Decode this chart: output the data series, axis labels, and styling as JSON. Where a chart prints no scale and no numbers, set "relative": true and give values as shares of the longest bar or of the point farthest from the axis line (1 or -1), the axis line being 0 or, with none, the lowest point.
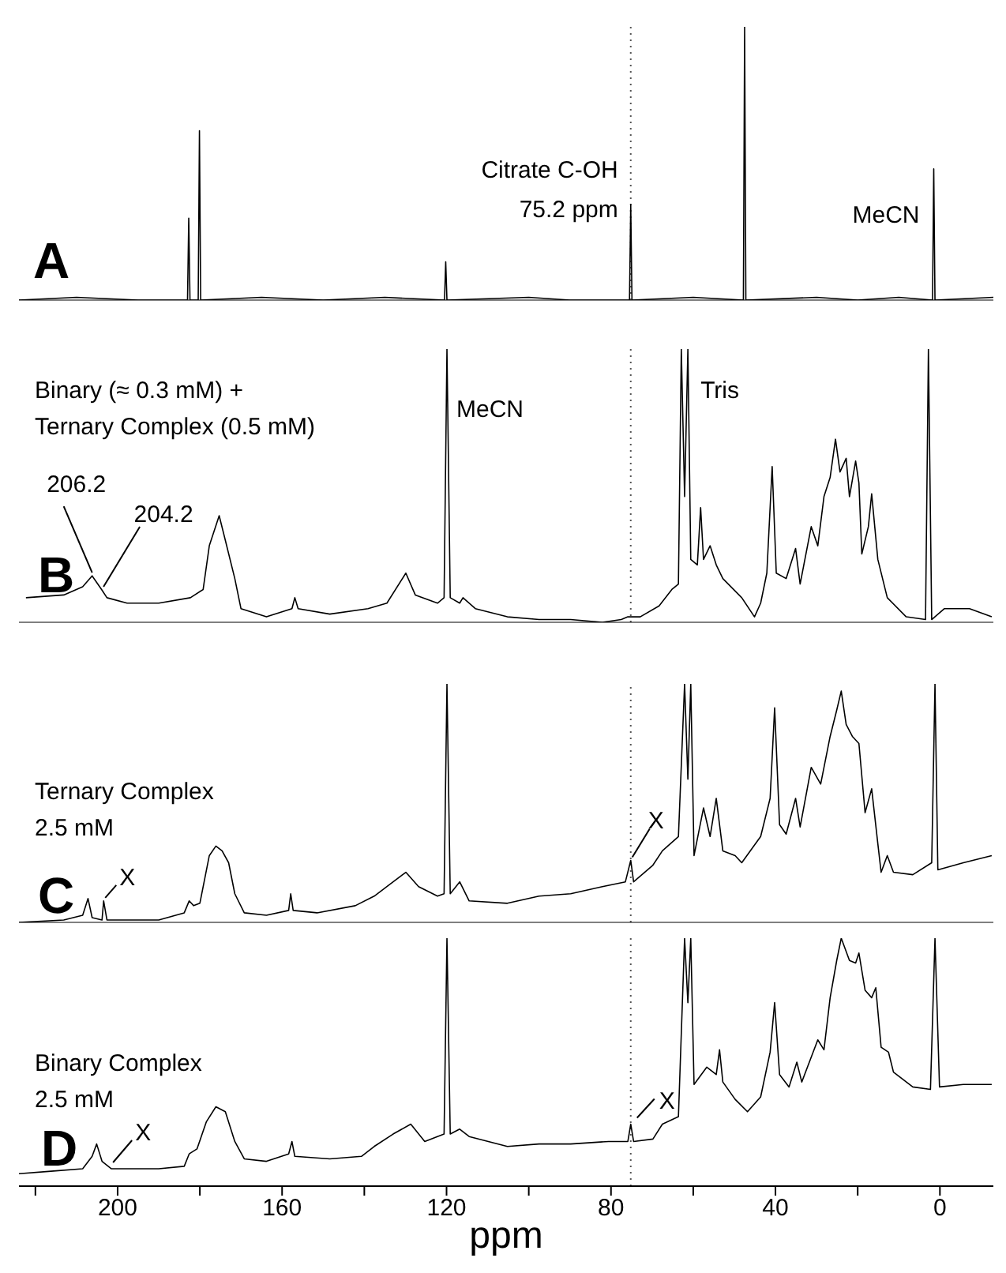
{
  "chart_data": [
    {
      "type": "line",
      "title": "A",
      "relative": true,
      "xlim": [
        224,
        -13
      ],
      "tick_labels": false,
      "color": "#000000",
      "marker": "none",
      "line_style": "solid",
      "x": [
        224,
        210,
        195,
        183.0,
        182.7,
        182.4,
        180.4,
        180.1,
        179.8,
        165,
        150,
        135,
        120.5,
        120.2,
        119.9,
        100,
        90,
        75.5,
        75.2,
        74.9,
        60,
        47.8,
        47.5,
        47.2,
        30,
        20,
        10,
        1.8,
        1.5,
        1.2,
        -13
      ],
      "values": [
        0,
        0.01,
        0,
        0,
        0.3,
        0,
        0,
        0.62,
        0,
        0.01,
        0,
        0.01,
        0,
        0.14,
        0,
        0.01,
        0,
        0,
        0.35,
        0,
        0.01,
        0,
        1,
        0,
        0.01,
        0,
        0.01,
        0,
        0.48,
        0,
        0.01
      ],
      "annotations": [
        {
          "text": "Citrate C-OH\n75.2 ppm",
          "x": 75.2,
          "y": 0.35
        },
        {
          "text": "MeCN",
          "x": 1.5,
          "y": 0.48
        }
      ],
      "ref_lines": [
        {
          "axis": "x",
          "value": 75.2,
          "color": "#555555",
          "line_style": "dotted"
        }
      ]
    },
    {
      "type": "line",
      "title": "B",
      "subtitle": "Binary (≈ 0.3 mM) +\nTernary Complex (0.5 mM)",
      "relative": true,
      "xlim": [
        224,
        -13
      ],
      "tick_labels": false,
      "color": "#000000",
      "marker": "none",
      "line_style": "solid",
      "x": [
        222.3,
        213.1,
        208.5,
        206.2,
        203.9,
        202.6,
        197.7,
        190,
        182.3,
        179.2,
        177.7,
        175.3,
        173.8,
        171.5,
        170,
        163.8,
        157.6,
        156.9,
        156.1,
        148.4,
        139.1,
        134.5,
        129.9,
        127.6,
        122.2,
        120.6,
        119.9,
        119.1,
        116.8,
        116,
        113,
        105.2,
        97.5,
        89.8,
        82.1,
        77.5,
        75.9,
        72.9,
        68.3,
        65.2,
        63.6,
        62.9,
        62.1,
        61.3,
        60.6,
        59,
        58.2,
        57.5,
        55.9,
        54.4,
        52.8,
        48.2,
        45.1,
        43.6,
        42.1,
        40.8,
        39.8,
        37.4,
        35.1,
        34,
        31.3,
        29.7,
        28.2,
        26.7,
        25.4,
        24.3,
        22.8,
        22,
        20.5,
        19.7,
        19,
        17.4,
        16.6,
        15.1,
        12.8,
        8.2,
        3.5,
        2.8,
        2,
        -1.1,
        -7.2,
        -12.6
      ],
      "values": [
        0.09,
        0.1,
        0.13,
        0.17,
        0.12,
        0.09,
        0.07,
        0.07,
        0.09,
        0.12,
        0.28,
        0.39,
        0.3,
        0.16,
        0.05,
        0.02,
        0.05,
        0.09,
        0.05,
        0.03,
        0.05,
        0.07,
        0.18,
        0.1,
        0.07,
        0.09,
        1,
        0.09,
        0.07,
        0.09,
        0.05,
        0.02,
        0.01,
        0.01,
        0,
        0.01,
        0.02,
        0.02,
        0.06,
        0.12,
        0.14,
        1,
        0.46,
        1,
        0.23,
        0.21,
        0.42,
        0.23,
        0.28,
        0.21,
        0.16,
        0.09,
        0.02,
        0.07,
        0.18,
        0.57,
        0.18,
        0.16,
        0.27,
        0.14,
        0.35,
        0.28,
        0.46,
        0.53,
        0.67,
        0.55,
        0.6,
        0.46,
        0.59,
        0.51,
        0.25,
        0.35,
        0.47,
        0.23,
        0.09,
        0.02,
        0.01,
        1,
        0.01,
        0.05,
        0.05,
        0.02
      ],
      "annotations": [
        {
          "text": "MeCN",
          "x": 119.9,
          "y": 1
        },
        {
          "text": "Tris",
          "x": 61.3,
          "y": 1
        },
        {
          "text": "206.2",
          "x": 206.2,
          "y": 0.17
        },
        {
          "text": "204.2",
          "x": 204.2,
          "y": 0.13
        }
      ],
      "ref_lines": [
        {
          "axis": "x",
          "value": 75.2,
          "color": "#555555",
          "line_style": "dotted"
        }
      ]
    },
    {
      "type": "line",
      "title": "C",
      "subtitle": "Ternary Complex\n2.5 mM",
      "relative": true,
      "xlim": [
        224,
        -13
      ],
      "tick_labels": false,
      "color": "#000000",
      "marker": "none",
      "line_style": "solid",
      "x": [
        224,
        213.1,
        208.5,
        207.2,
        206.2,
        203.8,
        203.4,
        202.6,
        190,
        183.8,
        182.6,
        181.5,
        180,
        177.7,
        176.1,
        174.6,
        173,
        171.5,
        169.2,
        163.8,
        158.4,
        157.9,
        157.3,
        151.5,
        142.2,
        137.6,
        134.5,
        129.9,
        126.8,
        122.2,
        120.6,
        119.9,
        119.1,
        116.8,
        114.5,
        105.2,
        97.5,
        89.8,
        82.1,
        76.5,
        75.2,
        74.5,
        69.8,
        67.5,
        63.6,
        62.1,
        61.3,
        60.6,
        59.8,
        57.5,
        55.9,
        54.4,
        52.8,
        49.8,
        48.2,
        43.6,
        41.3,
        40.2,
        39,
        37.4,
        35.1,
        34,
        31.3,
        29,
        26.7,
        25.1,
        24,
        22.8,
        21.3,
        19.7,
        18.2,
        16.6,
        15.1,
        14.3,
        12.8,
        11.3,
        6.6,
        2,
        1.2,
        0.5,
        -5.7,
        -12.6
      ],
      "values": [
        0,
        0.01,
        0.03,
        0.1,
        0.02,
        0.01,
        0.09,
        0.01,
        0.01,
        0.04,
        0.09,
        0.07,
        0.08,
        0.28,
        0.32,
        0.3,
        0.25,
        0.12,
        0.04,
        0.03,
        0.05,
        0.12,
        0.05,
        0.04,
        0.07,
        0.11,
        0.15,
        0.21,
        0.15,
        0.11,
        0.12,
        1,
        0.12,
        0.17,
        0.09,
        0.08,
        0.11,
        0.12,
        0.15,
        0.17,
        0.26,
        0.17,
        0.24,
        0.3,
        0.36,
        1,
        0.6,
        1,
        0.28,
        0.48,
        0.36,
        0.52,
        0.3,
        0.28,
        0.25,
        0.36,
        0.52,
        0.9,
        0.41,
        0.37,
        0.52,
        0.4,
        0.65,
        0.58,
        0.78,
        0.89,
        0.97,
        0.83,
        0.78,
        0.75,
        0.46,
        0.56,
        0.33,
        0.21,
        0.28,
        0.21,
        0.2,
        0.25,
        1,
        0.22,
        0.25,
        0.28
      ],
      "annotations": [
        {
          "text": "X",
          "x": 203.4,
          "y": 0.09
        },
        {
          "text": "X",
          "x": 75.2,
          "y": 0.26
        }
      ],
      "ref_lines": [
        {
          "axis": "x",
          "value": 75.2,
          "color": "#555555",
          "line_style": "dotted"
        }
      ]
    },
    {
      "type": "line",
      "title": "D",
      "subtitle": "Binary Complex\n2.5 mM",
      "relative": true,
      "xlim": [
        224,
        -13
      ],
      "xlabel": "ppm",
      "color": "#000000",
      "marker": "none",
      "line_style": "solid",
      "xticks": [
        {
          "value": 220,
          "label": null
        },
        200,
        {
          "value": 180,
          "label": null
        },
        160,
        {
          "value": 140,
          "label": null
        },
        120,
        {
          "value": 100,
          "label": null
        },
        80,
        {
          "value": 60,
          "label": null
        },
        40,
        {
          "value": 20,
          "label": null
        },
        0
      ],
      "x": [
        224,
        216.2,
        208.5,
        206.2,
        205.1,
        203.8,
        201.5,
        190,
        183.8,
        182.6,
        180.7,
        178.4,
        176.1,
        173.8,
        171.5,
        169.2,
        163.8,
        158.4,
        157.6,
        156.9,
        148.4,
        140.7,
        137.6,
        133,
        128.7,
        125.3,
        120.6,
        119.9,
        119.1,
        116.8,
        114.5,
        105.2,
        97.5,
        89.8,
        80.6,
        75.9,
        75.2,
        74.5,
        69.8,
        67.5,
        63.6,
        62.1,
        61.3,
        60.6,
        59.8,
        56.7,
        54.4,
        53.6,
        52.8,
        49.8,
        46.8,
        43.6,
        41.3,
        40.2,
        39,
        36.7,
        34.8,
        33.6,
        29.7,
        28.2,
        26.7,
        25.1,
        24,
        22,
        20.5,
        19.7,
        18.2,
        16.6,
        15.6,
        14.3,
        12.5,
        11.3,
        6.6,
        2.3,
        1.2,
        0.1,
        -5.7,
        -12.6
      ],
      "values": [
        0.05,
        0.06,
        0.07,
        0.12,
        0.17,
        0.1,
        0.07,
        0.07,
        0.08,
        0.13,
        0.15,
        0.26,
        0.32,
        0.3,
        0.18,
        0.11,
        0.1,
        0.13,
        0.18,
        0.12,
        0.11,
        0.12,
        0.16,
        0.21,
        0.25,
        0.18,
        0.21,
        1,
        0.21,
        0.23,
        0.2,
        0.16,
        0.17,
        0.17,
        0.18,
        0.18,
        0.25,
        0.18,
        0.19,
        0.25,
        0.28,
        1,
        0.74,
        1,
        0.41,
        0.48,
        0.45,
        0.55,
        0.42,
        0.35,
        0.3,
        0.36,
        0.54,
        0.74,
        0.45,
        0.4,
        0.5,
        0.42,
        0.59,
        0.55,
        0.76,
        0.91,
        1,
        0.91,
        0.9,
        0.94,
        0.79,
        0.76,
        0.8,
        0.56,
        0.54,
        0.46,
        0.4,
        0.39,
        1,
        0.4,
        0.41,
        0.41
      ],
      "annotations": [
        {
          "text": "X",
          "x": 201.5,
          "y": 0.07
        },
        {
          "text": "X",
          "x": 75.2,
          "y": 0.25
        }
      ],
      "ref_lines": [
        {
          "axis": "x",
          "value": 75.2,
          "color": "#555555",
          "line_style": "dotted"
        }
      ]
    }
  ]
}
